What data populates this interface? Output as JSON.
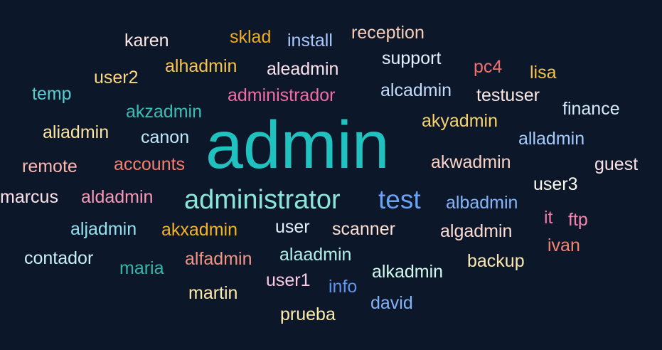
{
  "background": "#0c172a",
  "words": [
    {
      "text": "admin",
      "color": "#1fc2bf"
    },
    {
      "text": "administrator",
      "color": "#8ae6d8"
    },
    {
      "text": "test",
      "color": "#6aa2f5"
    },
    {
      "text": "karen",
      "color": "#fde8e4"
    },
    {
      "text": "sklad",
      "color": "#f0ad1b"
    },
    {
      "text": "install",
      "color": "#aac8fb"
    },
    {
      "text": "reception",
      "color": "#f5cdb9"
    },
    {
      "text": "support",
      "color": "#e3f0fd"
    },
    {
      "text": "pc4",
      "color": "#f46e6e"
    },
    {
      "text": "lisa",
      "color": "#f3c34b"
    },
    {
      "text": "user2",
      "color": "#fbd87c"
    },
    {
      "text": "alhadmin",
      "color": "#f5c552"
    },
    {
      "text": "aleadmin",
      "color": "#fbe3ee"
    },
    {
      "text": "temp",
      "color": "#55cfcf"
    },
    {
      "text": "administrador",
      "color": "#f26da3"
    },
    {
      "text": "alcadmin",
      "color": "#c4ddfb"
    },
    {
      "text": "testuser",
      "color": "#fde9e4"
    },
    {
      "text": "akzadmin",
      "color": "#3ebcb2"
    },
    {
      "text": "finance",
      "color": "#d5e9fd"
    },
    {
      "text": "aliadmin",
      "color": "#fde3a0"
    },
    {
      "text": "canon",
      "color": "#bfe8fa"
    },
    {
      "text": "akyadmin",
      "color": "#f6d36e"
    },
    {
      "text": "alladmin",
      "color": "#a3cbfb"
    },
    {
      "text": "remote",
      "color": "#fbb7b1"
    },
    {
      "text": "accounts",
      "color": "#f5806e"
    },
    {
      "text": "akwadmin",
      "color": "#fbd3c4"
    },
    {
      "text": "guest",
      "color": "#fde4e8"
    },
    {
      "text": "user3",
      "color": "#fdfcf4"
    },
    {
      "text": "marcus",
      "color": "#fde3ec"
    },
    {
      "text": "aldadmin",
      "color": "#f69ab8"
    },
    {
      "text": "albadmin",
      "color": "#86b5f8"
    },
    {
      "text": "it",
      "color": "#f57aa5"
    },
    {
      "text": "ftp",
      "color": "#f487ad"
    },
    {
      "text": "aljadmin",
      "color": "#95e1ef"
    },
    {
      "text": "akxadmin",
      "color": "#f4b420"
    },
    {
      "text": "user",
      "color": "#e6f0fd"
    },
    {
      "text": "scanner",
      "color": "#fde0d2"
    },
    {
      "text": "algadmin",
      "color": "#fcdcd4"
    },
    {
      "text": "ivan",
      "color": "#f5866e"
    },
    {
      "text": "contador",
      "color": "#cbf0f8"
    },
    {
      "text": "alfadmin",
      "color": "#f59482"
    },
    {
      "text": "alaadmin",
      "color": "#b2efe8"
    },
    {
      "text": "backup",
      "color": "#fbe7b0"
    },
    {
      "text": "maria",
      "color": "#32b8a9"
    },
    {
      "text": "user1",
      "color": "#fbcbe3"
    },
    {
      "text": "alkadmin",
      "color": "#d2fbf0"
    },
    {
      "text": "martin",
      "color": "#fdeaa8"
    },
    {
      "text": "info",
      "color": "#5f93f2"
    },
    {
      "text": "david",
      "color": "#85b1f7"
    },
    {
      "text": "prueba",
      "color": "#fdeeb0"
    }
  ]
}
